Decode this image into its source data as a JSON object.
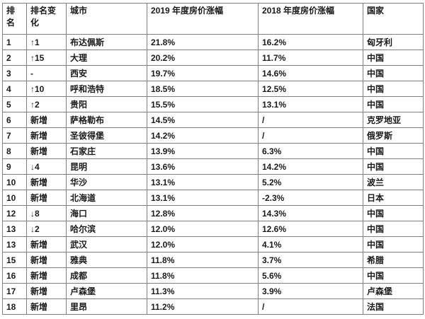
{
  "table": {
    "headers": {
      "rank": "排名",
      "change": "排名变化",
      "city": "城市",
      "y2019": "2019 年度房价涨幅",
      "y2018": "2018 年度房价涨幅",
      "country": "国家"
    },
    "rows": [
      {
        "rank": "1",
        "change": "↑1",
        "city": "布达佩斯",
        "y2019": "21.8%",
        "y2018": "16.2%",
        "country": "匈牙利"
      },
      {
        "rank": "2",
        "change": "↑15",
        "city": "大理",
        "y2019": "20.2%",
        "y2018": "11.7%",
        "country": "中国"
      },
      {
        "rank": "3",
        "change": "-",
        "city": "西安",
        "y2019": "19.7%",
        "y2018": "14.6%",
        "country": "中国"
      },
      {
        "rank": "4",
        "change": "↑10",
        "city": "呼和浩特",
        "y2019": "18.5%",
        "y2018": "12.5%",
        "country": "中国"
      },
      {
        "rank": "5",
        "change": "↑2",
        "city": "贵阳",
        "y2019": "15.5%",
        "y2018": "13.1%",
        "country": "中国"
      },
      {
        "rank": "6",
        "change": "新增",
        "city": "萨格勒布",
        "y2019": "14.5%",
        "y2018": "/",
        "country": "克罗地亚"
      },
      {
        "rank": "7",
        "change": "新增",
        "city": "圣彼得堡",
        "y2019": "14.2%",
        "y2018": "/",
        "country": "俄罗斯"
      },
      {
        "rank": "8",
        "change": "新增",
        "city": "石家庄",
        "y2019": "13.9%",
        "y2018": "6.3%",
        "country": "中国"
      },
      {
        "rank": "9",
        "change": "↓4",
        "city": "昆明",
        "y2019": "13.6%",
        "y2018": "14.2%",
        "country": "中国"
      },
      {
        "rank": "10",
        "change": "新增",
        "city": "华沙",
        "y2019": "13.1%",
        "y2018": "5.2%",
        "country": "波兰"
      },
      {
        "rank": "10",
        "change": "新增",
        "city": "北海道",
        "y2019": "13.1%",
        "y2018": "-2.3%",
        "country": "日本"
      },
      {
        "rank": "12",
        "change": "↓8",
        "city": "海口",
        "y2019": "12.8%",
        "y2018": "14.3%",
        "country": "中国"
      },
      {
        "rank": "13",
        "change": "↓2",
        "city": "哈尔滨",
        "y2019": "12.0%",
        "y2018": "12.6%",
        "country": "中国"
      },
      {
        "rank": "13",
        "change": "新增",
        "city": "武汉",
        "y2019": "12.0%",
        "y2018": "4.1%",
        "country": "中国"
      },
      {
        "rank": "15",
        "change": "新增",
        "city": "雅典",
        "y2019": "11.8%",
        "y2018": "3.7%",
        "country": "希腊"
      },
      {
        "rank": "16",
        "change": "新增",
        "city": "成都",
        "y2019": "11.8%",
        "y2018": "5.6%",
        "country": "中国"
      },
      {
        "rank": "17",
        "change": "新增",
        "city": "卢森堡",
        "y2019": "11.3%",
        "y2018": "3.9%",
        "country": "卢森堡"
      },
      {
        "rank": "18",
        "change": "新增",
        "city": "里昂",
        "y2019": "11.2%",
        "y2018": "/",
        "country": "法国"
      }
    ]
  }
}
